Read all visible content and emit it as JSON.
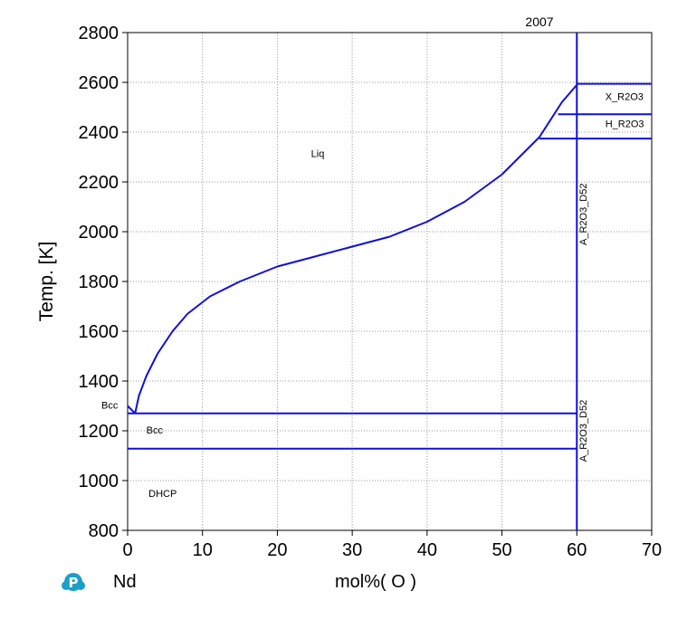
{
  "chart_data": {
    "type": "line",
    "title": "2007",
    "xlabel": "mol%( O )",
    "ylabel": "Temp. [K]",
    "xlim": [
      0,
      70
    ],
    "ylim": [
      800,
      2800
    ],
    "x_ticks": [
      0,
      10,
      20,
      30,
      40,
      50,
      60,
      70
    ],
    "y_ticks": [
      800,
      1000,
      1200,
      1400,
      1600,
      1800,
      2000,
      2200,
      2400,
      2600,
      2800
    ],
    "grid": true,
    "line_color": "#1010d8",
    "footer": {
      "left": "Nd",
      "center": "mol%( O )"
    },
    "series": [
      {
        "points": [
          [
            1.0,
            1270
          ],
          [
            1.5,
            1340
          ],
          [
            2.5,
            1420
          ],
          [
            4,
            1510
          ],
          [
            6,
            1600
          ],
          [
            8,
            1670
          ],
          [
            11,
            1740
          ],
          [
            15,
            1800
          ],
          [
            20,
            1860
          ],
          [
            25,
            1900
          ],
          [
            30,
            1940
          ],
          [
            35,
            1980
          ],
          [
            40,
            2040
          ],
          [
            45,
            2120
          ],
          [
            50,
            2230
          ],
          [
            55,
            2380
          ],
          [
            58,
            2520
          ],
          [
            60,
            2590
          ]
        ]
      },
      {
        "points": [
          [
            0,
            1300
          ],
          [
            1.0,
            1270
          ]
        ]
      },
      {
        "points": [
          [
            0,
            1270
          ],
          [
            60,
            1270
          ]
        ]
      },
      {
        "points": [
          [
            0,
            1128
          ],
          [
            60,
            1128
          ]
        ]
      },
      {
        "points": [
          [
            60,
            2800
          ],
          [
            60,
            800
          ]
        ]
      },
      {
        "points": [
          [
            60,
            2594
          ],
          [
            70,
            2594
          ]
        ]
      },
      {
        "points": [
          [
            57.5,
            2472
          ],
          [
            70,
            2472
          ]
        ]
      },
      {
        "points": [
          [
            55,
            2374
          ],
          [
            70,
            2374
          ]
        ]
      }
    ],
    "annotations": [
      {
        "text": "Liq",
        "x": 24.5,
        "y": 2300,
        "rotate": 0
      },
      {
        "text": "Bcc",
        "x": -3.5,
        "y": 1290,
        "rotate": 0
      },
      {
        "text": "Bcc",
        "x": 2.5,
        "y": 1190,
        "rotate": 0
      },
      {
        "text": "DHCP",
        "x": 2.8,
        "y": 935,
        "rotate": 0
      },
      {
        "text": "X_R2O3",
        "x": 63.8,
        "y": 2530,
        "rotate": 0
      },
      {
        "text": "H_R2O3",
        "x": 63.8,
        "y": 2420,
        "rotate": 0
      },
      {
        "text": "A_R2O3_D52",
        "x": 61.3,
        "y": 2070,
        "rotate": -90
      },
      {
        "text": "A_R2O3_D52",
        "x": 61.3,
        "y": 1200,
        "rotate": -90
      }
    ]
  }
}
